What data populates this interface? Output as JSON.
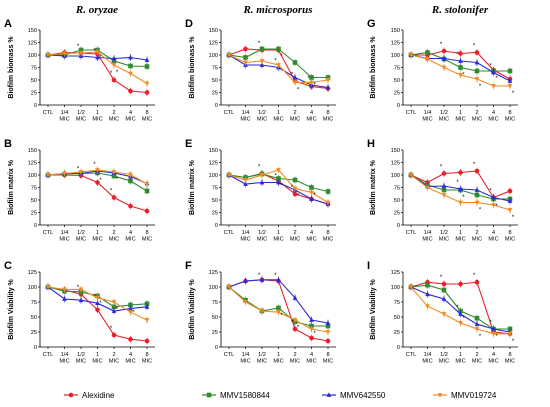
{
  "columns": [
    {
      "title": "R. oryzae"
    },
    {
      "title": "R. microsporus"
    },
    {
      "title": "R. stolonifer"
    }
  ],
  "legend": [
    {
      "name": "Alexidine",
      "color": "#e8202a",
      "marker": "circle"
    },
    {
      "name": "MMV1580844",
      "color": "#2e8b2e",
      "marker": "square"
    },
    {
      "name": "MMV642550",
      "color": "#2a2ad8",
      "marker": "triangle"
    },
    {
      "name": "MMV019724",
      "color": "#f08a24",
      "marker": "triangle-down"
    }
  ],
  "chart_data": [
    {
      "panel": "A",
      "type": "line",
      "ylabel": "Biofilm biomass %",
      "ylim": [
        0,
        150
      ],
      "yticks": [
        0,
        25,
        50,
        75,
        100,
        125,
        150
      ],
      "categories": [
        "CTL",
        "1/4 MIC",
        "1/2 MIC",
        "1 MIC",
        "2 MIC",
        "4 MIC",
        "8 MIC"
      ],
      "series": [
        {
          "name": "Alexidine",
          "values": [
            100,
            105,
            104,
            102,
            50,
            28,
            25
          ]
        },
        {
          "name": "MMV1580844",
          "values": [
            100,
            100,
            110,
            110,
            88,
            78,
            77
          ]
        },
        {
          "name": "MMV642550",
          "values": [
            100,
            98,
            98,
            95,
            93,
            95,
            90
          ]
        },
        {
          "name": "MMV019724",
          "values": [
            100,
            103,
            104,
            106,
            80,
            63,
            43
          ]
        }
      ],
      "annotations": [
        "*",
        "*",
        "*",
        "*",
        "*"
      ]
    },
    {
      "panel": "B",
      "type": "line",
      "ylabel": "Biofilm matrix %",
      "ylim": [
        0,
        150
      ],
      "yticks": [
        0,
        25,
        50,
        75,
        100,
        125,
        150
      ],
      "categories": [
        "CTL",
        "1/4 MIC",
        "1/2 MIC",
        "1 MIC",
        "2 MIC",
        "4 MIC",
        "8 MIC"
      ],
      "series": [
        {
          "name": "Alexidine",
          "values": [
            100,
            100,
            99,
            85,
            55,
            38,
            28
          ]
        },
        {
          "name": "MMV1580844",
          "values": [
            100,
            102,
            103,
            104,
            98,
            88,
            68
          ]
        },
        {
          "name": "MMV642550",
          "values": [
            100,
            103,
            103,
            108,
            104,
            97,
            83
          ]
        },
        {
          "name": "MMV019724",
          "values": [
            100,
            103,
            106,
            110,
            106,
            101,
            82
          ]
        }
      ],
      "annotations": [
        "*",
        "*",
        "*",
        "*",
        "*"
      ]
    },
    {
      "panel": "C",
      "type": "line",
      "ylabel": "Biofilm Viability %",
      "ylim": [
        0,
        125
      ],
      "yticks": [
        0,
        25,
        50,
        75,
        100,
        125
      ],
      "categories": [
        "CTL",
        "1/4 MIC",
        "1/2 MIC",
        "1 MIC",
        "2 MIC",
        "4 MIC",
        "8 MIC"
      ],
      "series": [
        {
          "name": "Alexidine",
          "values": [
            100,
            95,
            88,
            62,
            20,
            13,
            10
          ]
        },
        {
          "name": "MMV1580844",
          "values": [
            100,
            93,
            92,
            85,
            67,
            70,
            72
          ]
        },
        {
          "name": "MMV642550",
          "values": [
            100,
            80,
            78,
            73,
            60,
            64,
            67
          ]
        },
        {
          "name": "MMV019724",
          "values": [
            100,
            96,
            96,
            82,
            75,
            58,
            45
          ]
        }
      ],
      "annotations": [
        "*",
        "*",
        "*",
        "*",
        "*",
        "*"
      ]
    },
    {
      "panel": "D",
      "type": "line",
      "ylabel": "Biofilm biomass %",
      "ylim": [
        0,
        150
      ],
      "yticks": [
        0,
        25,
        50,
        75,
        100,
        125,
        150
      ],
      "categories": [
        "CTL",
        "1/4 MIC",
        "1/2 MIC",
        "1 MIC",
        "2 MIC",
        "4 MIC",
        "8 MIC"
      ],
      "series": [
        {
          "name": "Alexidine",
          "values": [
            100,
            112,
            110,
            110,
            48,
            37,
            33
          ]
        },
        {
          "name": "MMV1580844",
          "values": [
            100,
            95,
            112,
            112,
            85,
            55,
            55
          ]
        },
        {
          "name": "MMV642550",
          "values": [
            100,
            80,
            80,
            75,
            55,
            40,
            35
          ]
        },
        {
          "name": "MMV019724",
          "values": [
            100,
            85,
            88,
            80,
            45,
            45,
            50
          ]
        }
      ],
      "annotations": [
        "*",
        "*",
        "*",
        "*",
        "*",
        "*",
        "*"
      ]
    },
    {
      "panel": "E",
      "type": "line",
      "ylabel": "Biofilm matrix %",
      "ylim": [
        0,
        150
      ],
      "yticks": [
        0,
        25,
        50,
        75,
        100,
        125,
        150
      ],
      "categories": [
        "CTL",
        "1/4 MIC",
        "1/2 MIC",
        "1 MIC",
        "2 MIC",
        "4 MIC",
        "8 MIC"
      ],
      "series": [
        {
          "name": "Alexidine",
          "values": [
            100,
            95,
            103,
            88,
            62,
            52,
            42
          ]
        },
        {
          "name": "MMV1580844",
          "values": [
            100,
            95,
            102,
            93,
            90,
            75,
            67
          ]
        },
        {
          "name": "MMV642550",
          "values": [
            100,
            82,
            85,
            85,
            70,
            52,
            42
          ]
        },
        {
          "name": "MMV019724",
          "values": [
            100,
            90,
            100,
            110,
            73,
            65,
            45
          ]
        }
      ],
      "annotations": [
        "*",
        "*",
        "*",
        "*",
        "*",
        "*"
      ]
    },
    {
      "panel": "F",
      "type": "line",
      "ylabel": "Biofilm Viability %",
      "ylim": [
        0,
        125
      ],
      "yticks": [
        0,
        25,
        50,
        75,
        100,
        125
      ],
      "categories": [
        "CTL",
        "1/4 MIC",
        "1/2 MIC",
        "1 MIC",
        "2 MIC",
        "4 MIC",
        "8 MIC"
      ],
      "series": [
        {
          "name": "Alexidine",
          "values": [
            100,
            110,
            112,
            110,
            30,
            15,
            10
          ]
        },
        {
          "name": "MMV1580844",
          "values": [
            100,
            78,
            60,
            65,
            42,
            35,
            35
          ]
        },
        {
          "name": "MMV642550",
          "values": [
            100,
            110,
            112,
            112,
            82,
            45,
            40
          ]
        },
        {
          "name": "MMV019724",
          "values": [
            100,
            75,
            60,
            58,
            45,
            30,
            25
          ]
        }
      ],
      "annotations": [
        "*",
        "*",
        "*",
        "*",
        "*",
        "*"
      ]
    },
    {
      "panel": "G",
      "type": "line",
      "ylabel": "Biofilm biomass %",
      "ylim": [
        0,
        150
      ],
      "yticks": [
        0,
        25,
        50,
        75,
        100,
        125,
        150
      ],
      "categories": [
        "CTL",
        "1/4 MIC",
        "1/2 MIC",
        "1 MIC",
        "2 MIC",
        "4 MIC",
        "8 MIC"
      ],
      "series": [
        {
          "name": "Alexidine",
          "values": [
            100,
            100,
            108,
            103,
            105,
            70,
            52
          ]
        },
        {
          "name": "MMV1580844",
          "values": [
            100,
            105,
            92,
            75,
            68,
            68,
            68
          ]
        },
        {
          "name": "MMV642550",
          "values": [
            100,
            93,
            93,
            88,
            85,
            65,
            48
          ]
        },
        {
          "name": "MMV019724",
          "values": [
            100,
            92,
            75,
            60,
            52,
            38,
            38
          ]
        }
      ],
      "annotations": [
        "*",
        "*",
        "*",
        "*",
        "*",
        "*",
        "*",
        "*"
      ]
    },
    {
      "panel": "H",
      "type": "line",
      "ylabel": "Biofilm matrix %",
      "ylim": [
        0,
        150
      ],
      "yticks": [
        0,
        25,
        50,
        75,
        100,
        125,
        150
      ],
      "categories": [
        "CTL",
        "1/4 MIC",
        "1/2 MIC",
        "1 MIC",
        "2 MIC",
        "4 MIC",
        "8 MIC"
      ],
      "series": [
        {
          "name": "Alexidine",
          "values": [
            100,
            85,
            103,
            105,
            108,
            55,
            68
          ]
        },
        {
          "name": "MMV1580844",
          "values": [
            100,
            80,
            70,
            70,
            60,
            52,
            52
          ]
        },
        {
          "name": "MMV642550",
          "values": [
            100,
            77,
            78,
            72,
            70,
            55,
            48
          ]
        },
        {
          "name": "MMV019724",
          "values": [
            100,
            75,
            60,
            45,
            45,
            40,
            30
          ]
        }
      ],
      "annotations": [
        "*",
        "*",
        "*",
        "*",
        "*",
        "*",
        "*",
        "*"
      ]
    },
    {
      "panel": "I",
      "type": "line",
      "ylabel": "Biofilm Viability %",
      "ylim": [
        0,
        125
      ],
      "yticks": [
        0,
        25,
        50,
        75,
        100,
        125
      ],
      "categories": [
        "CTL",
        "1/4 MIC",
        "1/2 MIC",
        "1 MIC",
        "2 MIC",
        "4 MIC",
        "8 MIC"
      ],
      "series": [
        {
          "name": "Alexidine",
          "values": [
            100,
            108,
            105,
            105,
            108,
            25,
            22
          ]
        },
        {
          "name": "MMV1580844",
          "values": [
            100,
            103,
            95,
            60,
            48,
            30,
            30
          ]
        },
        {
          "name": "MMV642550",
          "values": [
            100,
            88,
            80,
            55,
            38,
            30,
            25
          ]
        },
        {
          "name": "MMV019724",
          "values": [
            100,
            68,
            55,
            40,
            30,
            22,
            22
          ]
        }
      ],
      "annotations": [
        "*",
        "*",
        "*",
        "*",
        "*",
        "*",
        "*",
        "*"
      ]
    }
  ]
}
